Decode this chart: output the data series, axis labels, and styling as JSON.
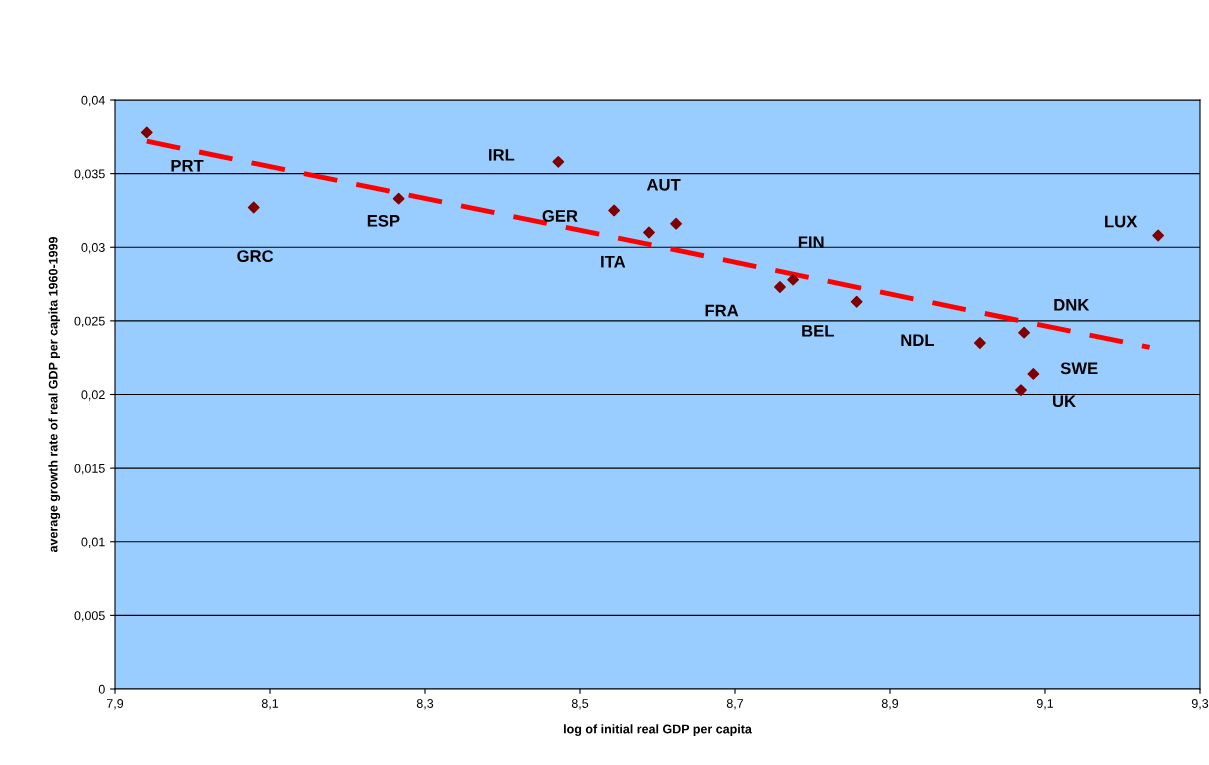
{
  "chart_data": {
    "type": "scatter",
    "xlabel": "log of initial real GDP per capita",
    "ylabel": "average growth rate of real GDP per capita 1960-1999",
    "series": [
      {
        "type": "scatter",
        "color": "#800000",
        "marker": "diamond",
        "x": [
          7.941,
          8.079,
          8.266,
          8.472,
          8.544,
          8.589,
          8.624,
          8.758,
          8.775,
          8.857,
          9.016,
          9.073,
          9.085,
          9.069,
          9.246
        ],
        "values": [
          0.0378,
          0.0327,
          0.0333,
          0.0358,
          0.0325,
          0.031,
          0.0316,
          0.0273,
          0.0278,
          0.0263,
          0.0235,
          0.0242,
          0.0214,
          0.0203,
          0.0308
        ]
      },
      {
        "type": "line",
        "color": "#ff0000",
        "line_style": "dashed",
        "marker": "none",
        "x": [
          7.941,
          9.235
        ],
        "values": [
          0.0372,
          0.0232
        ]
      }
    ],
    "annotations": [
      {
        "text": "PRT",
        "x": 7.941,
        "y": 0.0378
      },
      {
        "text": "GRC",
        "x": 8.079,
        "y": 0.0327
      },
      {
        "text": "ESP",
        "x": 8.266,
        "y": 0.0333
      },
      {
        "text": "IRL",
        "x": 8.472,
        "y": 0.0358
      },
      {
        "text": "GER",
        "x": 8.544,
        "y": 0.0325
      },
      {
        "text": "ITA",
        "x": 8.589,
        "y": 0.031
      },
      {
        "text": "AUT",
        "x": 8.624,
        "y": 0.0316
      },
      {
        "text": "FRA",
        "x": 8.758,
        "y": 0.0273
      },
      {
        "text": "FIN",
        "x": 8.775,
        "y": 0.0278
      },
      {
        "text": "BEL",
        "x": 8.857,
        "y": 0.0263
      },
      {
        "text": "NDL",
        "x": 9.016,
        "y": 0.0235
      },
      {
        "text": "DNK",
        "x": 9.073,
        "y": 0.0242
      },
      {
        "text": "SWE",
        "x": 9.085,
        "y": 0.0214
      },
      {
        "text": "UK",
        "x": 9.069,
        "y": 0.0203
      },
      {
        "text": "LUX",
        "x": 9.246,
        "y": 0.0308
      }
    ],
    "xlim": [
      7.9,
      9.3
    ],
    "xticks": [
      {
        "value": 7.9,
        "label": "7,9"
      },
      {
        "value": 8.1,
        "label": "8,1"
      },
      {
        "value": 8.3,
        "label": "8,3"
      },
      {
        "value": 8.5,
        "label": "8,5"
      },
      {
        "value": 8.7,
        "label": "8,7"
      },
      {
        "value": 8.9,
        "label": "8,9"
      },
      {
        "value": 9.1,
        "label": "9,1"
      },
      {
        "value": 9.3,
        "label": "9,3"
      }
    ],
    "ylim": [
      0,
      0.04
    ],
    "yticks": [
      0,
      {
        "value": 0.005,
        "label": "0,005"
      },
      {
        "value": 0.01,
        "label": "0,01"
      },
      {
        "value": 0.015,
        "label": "0,015"
      },
      {
        "value": 0.02,
        "label": "0,02"
      },
      {
        "value": 0.025,
        "label": "0,025"
      },
      {
        "value": 0.03,
        "label": "0,03"
      },
      {
        "value": 0.035,
        "label": "0,035"
      },
      {
        "value": 0.04,
        "label": "0,04"
      }
    ],
    "grid": "y"
  }
}
